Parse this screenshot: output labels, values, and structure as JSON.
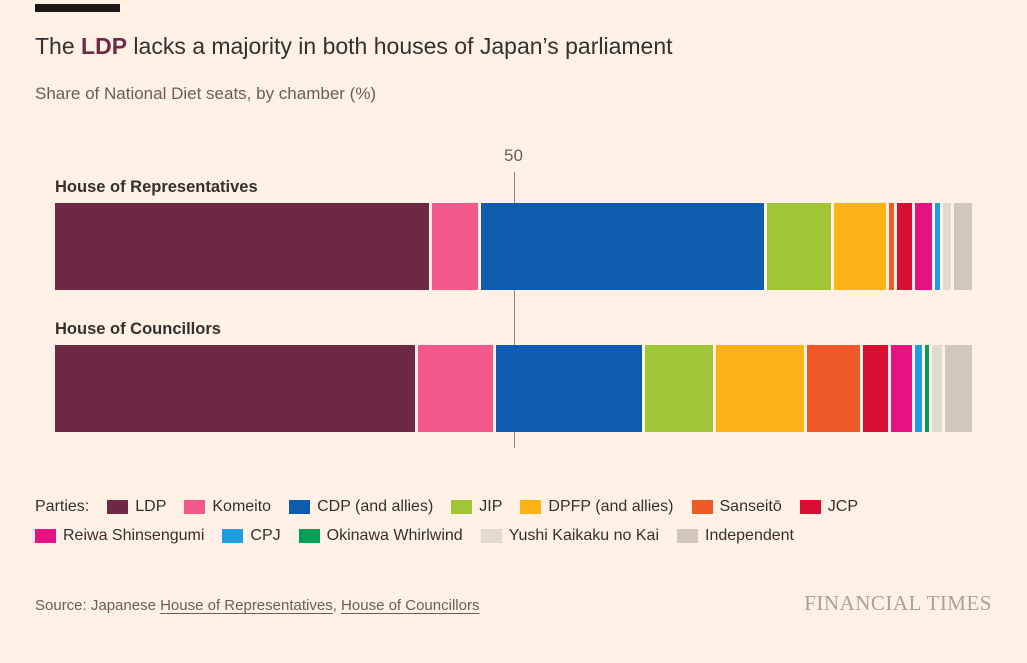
{
  "header": {
    "title": {
      "prefix": "The ",
      "highlight": "LDP",
      "suffix": " lacks a majority in both houses of Japan’s parliament"
    },
    "subtitle": "Share of National Diet seats, by chamber (%)"
  },
  "chart_data": {
    "type": "bar",
    "orientation": "horizontal",
    "stacked": true,
    "value_unit": "%",
    "xlim": [
      0,
      100
    ],
    "grid": false,
    "reference_line": {
      "value": 50,
      "label": "50"
    },
    "legend_title": "Parties:",
    "legend_position": "bottom",
    "categories": [
      "House of Representatives",
      "House of Councillors"
    ],
    "series": [
      {
        "name": "LDP",
        "color": "#6E2A45",
        "values": [
          42.2,
          40.7
        ]
      },
      {
        "name": "Komeito",
        "color": "#F4598C",
        "values": [
          5.2,
          8.5
        ]
      },
      {
        "name": "CDP (and allies)",
        "color": "#0D5CAD",
        "values": [
          31.8,
          16.5
        ]
      },
      {
        "name": "JIP",
        "color": "#A0C537",
        "values": [
          7.3,
          7.7
        ]
      },
      {
        "name": "DPFP (and allies)",
        "color": "#FCB316",
        "values": [
          5.8,
          10.0
        ]
      },
      {
        "name": "Sanseitō",
        "color": "#EE5A28",
        "values": [
          0.6,
          6.0
        ]
      },
      {
        "name": "JCP",
        "color": "#D80F33",
        "values": [
          1.7,
          2.8
        ]
      },
      {
        "name": "Reiwa Shinsengumi",
        "color": "#E5127F",
        "values": [
          1.9,
          2.4
        ]
      },
      {
        "name": "CPJ",
        "color": "#1F9FE0",
        "values": [
          0.6,
          0.8
        ]
      },
      {
        "name": "Okinawa Whirlwind",
        "color": "#009D54",
        "values": [
          0,
          0.4
        ]
      },
      {
        "name": "Yushi Kaikaku no Kai",
        "color": "#E0DACF",
        "values": [
          0.9,
          1.2
        ]
      },
      {
        "name": "Independent",
        "color": "#CFC8BB",
        "values": [
          2.0,
          3.0
        ]
      }
    ]
  },
  "footer": {
    "source_prefix": "Source: Japanese ",
    "source_link_1": "House of Representatives",
    "source_separator": ", ",
    "source_link_2": "House of Councillors",
    "brand": "FINANCIAL TIMES"
  }
}
